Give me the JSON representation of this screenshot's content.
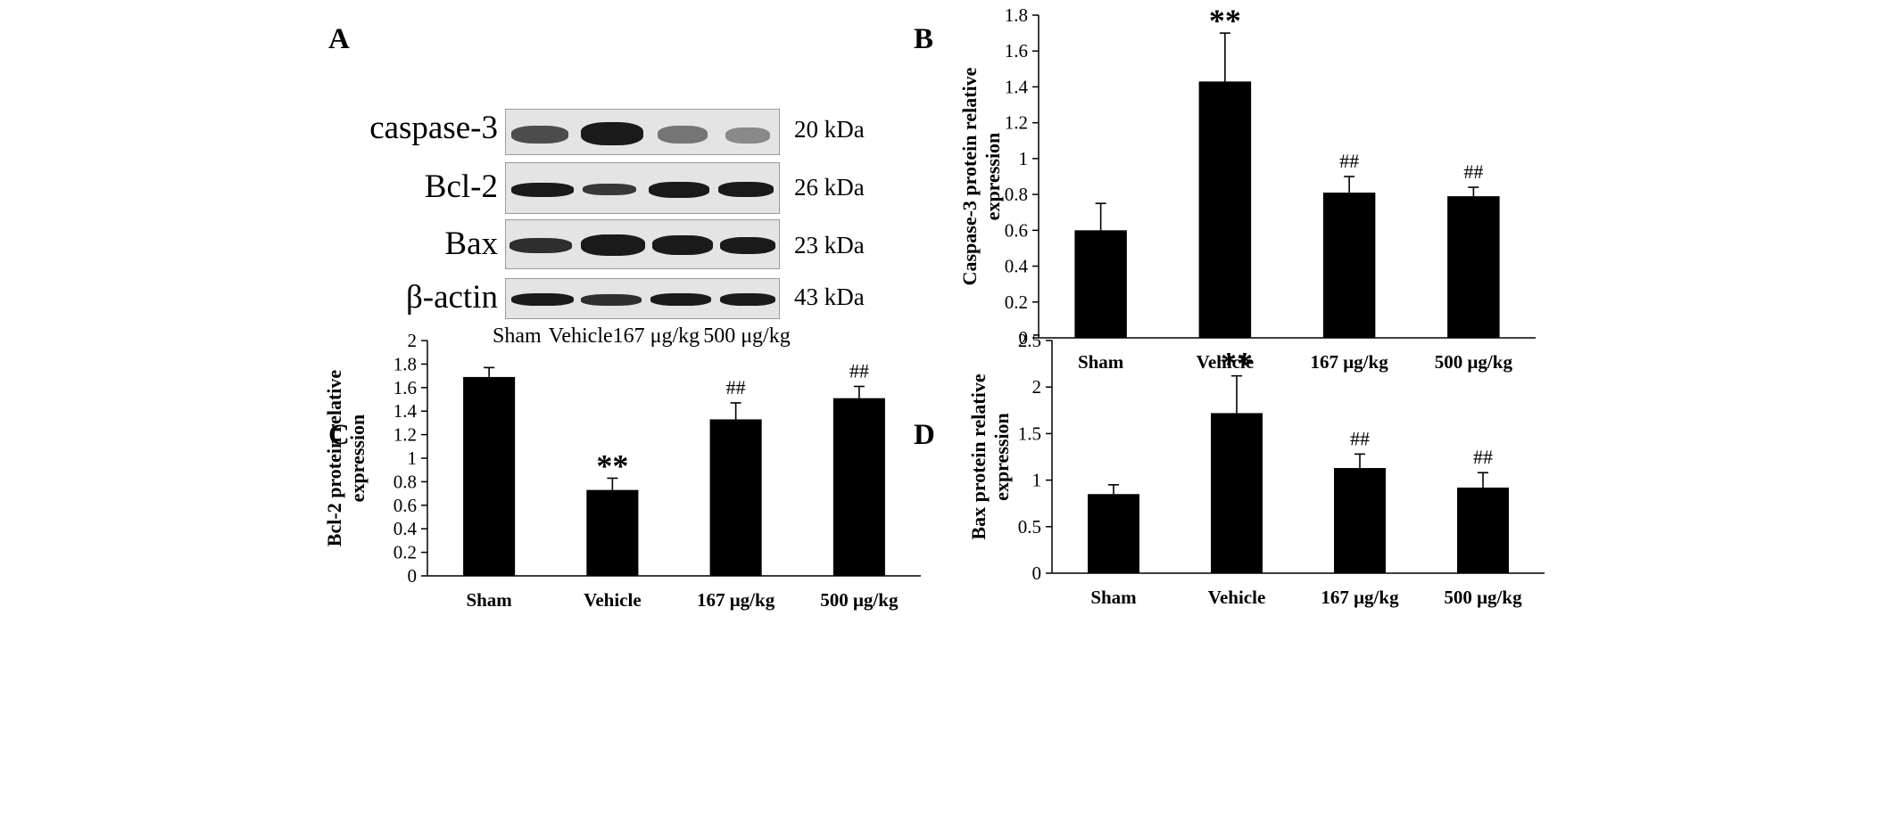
{
  "panel_letters": {
    "a": "A",
    "b": "B",
    "c": "C",
    "d": "D"
  },
  "blot": {
    "proteins": [
      "caspase-3",
      "Bcl-2",
      "Bax",
      "β-actin"
    ],
    "kda": [
      "20 kDa",
      "26 kDa",
      "23 kDa",
      "43 kDa"
    ],
    "lanes": [
      "Sham",
      "Vehicle",
      "167 μg/kg",
      "500 μg/kg"
    ]
  },
  "chart_data": [
    {
      "panel": "B",
      "type": "bar",
      "categories": [
        "Sham",
        "Vehicle",
        "167 μg/kg",
        "500 μg/kg"
      ],
      "values": [
        0.6,
        1.43,
        0.81,
        0.79
      ],
      "errors": [
        0.15,
        0.27,
        0.09,
        0.05
      ],
      "annotations": [
        "",
        "**",
        "##",
        "##"
      ],
      "ylabel": "Caspase-3 protein relative expression",
      "ylim": [
        0,
        1.8
      ],
      "yticks": [
        0,
        0.2,
        0.4,
        0.6,
        0.8,
        1,
        1.2,
        1.4,
        1.6,
        1.8
      ],
      "yticklabels": [
        "0",
        "0.2",
        "0.4",
        "0.6",
        "0.8",
        "1",
        "1.2",
        "1.4",
        "1.6",
        "1.8"
      ],
      "grid": false,
      "bar_color": "#000000"
    },
    {
      "panel": "C",
      "type": "bar",
      "categories": [
        "Sham",
        "Vehicle",
        "167 μg/kg",
        "500 μg/kg"
      ],
      "values": [
        1.69,
        0.73,
        1.33,
        1.51
      ],
      "errors": [
        0.08,
        0.1,
        0.14,
        0.1
      ],
      "annotations": [
        "",
        "**",
        "##",
        "##"
      ],
      "ylabel": "Bcl-2 protein relative expression",
      "ylim": [
        0,
        2
      ],
      "yticks": [
        0,
        0.2,
        0.4,
        0.6,
        0.8,
        1,
        1.2,
        1.4,
        1.6,
        1.8,
        2
      ],
      "yticklabels": [
        "0",
        "0.2",
        "0.4",
        "0.6",
        "0.8",
        "1",
        "1.2",
        "1.4",
        "1.6",
        "1.8",
        "2"
      ],
      "grid": false,
      "bar_color": "#000000"
    },
    {
      "panel": "D",
      "type": "bar",
      "categories": [
        "Sham",
        "Vehicle",
        "167 μg/kg",
        "500 μg/kg"
      ],
      "values": [
        0.85,
        1.72,
        1.13,
        0.92
      ],
      "errors": [
        0.1,
        0.4,
        0.15,
        0.16
      ],
      "annotations": [
        "",
        "**",
        "##",
        "##"
      ],
      "ylabel": "Bax protein relative expression",
      "ylim": [
        0,
        2.5
      ],
      "yticks": [
        0,
        0.5,
        1,
        1.5,
        2,
        2.5
      ],
      "yticklabels": [
        "0",
        "0.5",
        "1",
        "1.5",
        "2",
        "2.5"
      ],
      "grid": false,
      "bar_color": "#000000"
    }
  ]
}
